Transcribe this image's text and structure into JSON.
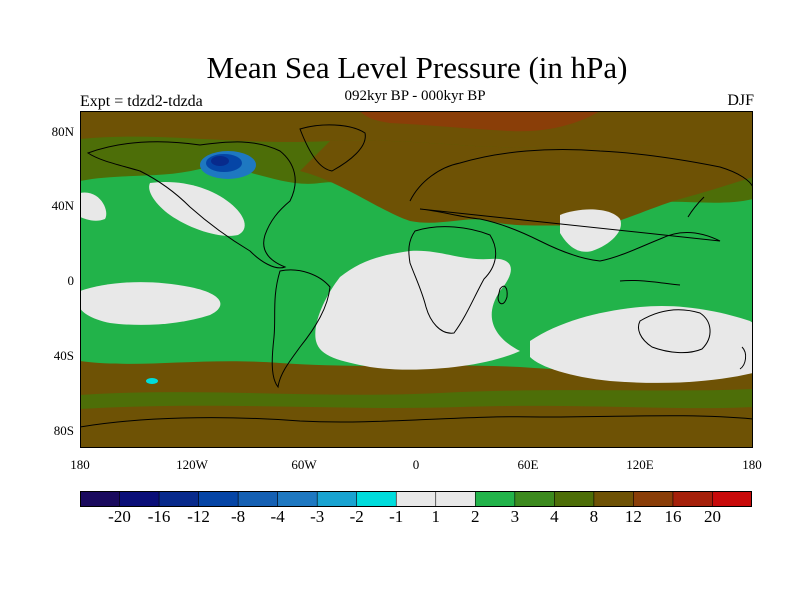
{
  "title": "Mean Sea Level Pressure (in hPa)",
  "subtitle": "092kyr BP - 000kyr BP",
  "experiment_label": "Expt = tdzd2-tdzda",
  "season": "DJF",
  "lat_ticks": [
    "80N",
    "40N",
    "0",
    "40S",
    "80S"
  ],
  "lon_ticks": [
    "180",
    "120W",
    "60W",
    "0",
    "60E",
    "120E",
    "180"
  ],
  "map": {
    "projection": "cylindrical equidistant",
    "lon_range": [
      -180,
      180
    ],
    "lat_range": [
      -90,
      90
    ],
    "dominant_regions": [
      {
        "region": "Arctic and high northern latitudes",
        "level": "4 to 8"
      },
      {
        "region": "Central and northern Asia",
        "level": "4 to 8"
      },
      {
        "region": "Eastern Canada / Hudson Bay",
        "level": "-4 to -20"
      },
      {
        "region": "Tropical oceans and Southern Hemisphere subtropics",
        "level": "-1 to 1"
      },
      {
        "region": "Southern Ocean and Antarctica",
        "level": "3 to 8"
      }
    ]
  },
  "colorbar": {
    "labels": [
      "-20",
      "-16",
      "-12",
      "-8",
      "-4",
      "-3",
      "-2",
      "-1",
      "1",
      "2",
      "3",
      "4",
      "8",
      "12",
      "16",
      "20"
    ],
    "colors": [
      "#1a0a5e",
      "#0a0e78",
      "#082a8c",
      "#0545a6",
      "#1560b3",
      "#1e78c1",
      "#19a3d1",
      "#00dcdc",
      "#e8e8e8",
      "#22b34a",
      "#3c8a1e",
      "#4d6e08",
      "#6e5205",
      "#8a3e08",
      "#a5200a",
      "#c80a0a"
    ]
  }
}
